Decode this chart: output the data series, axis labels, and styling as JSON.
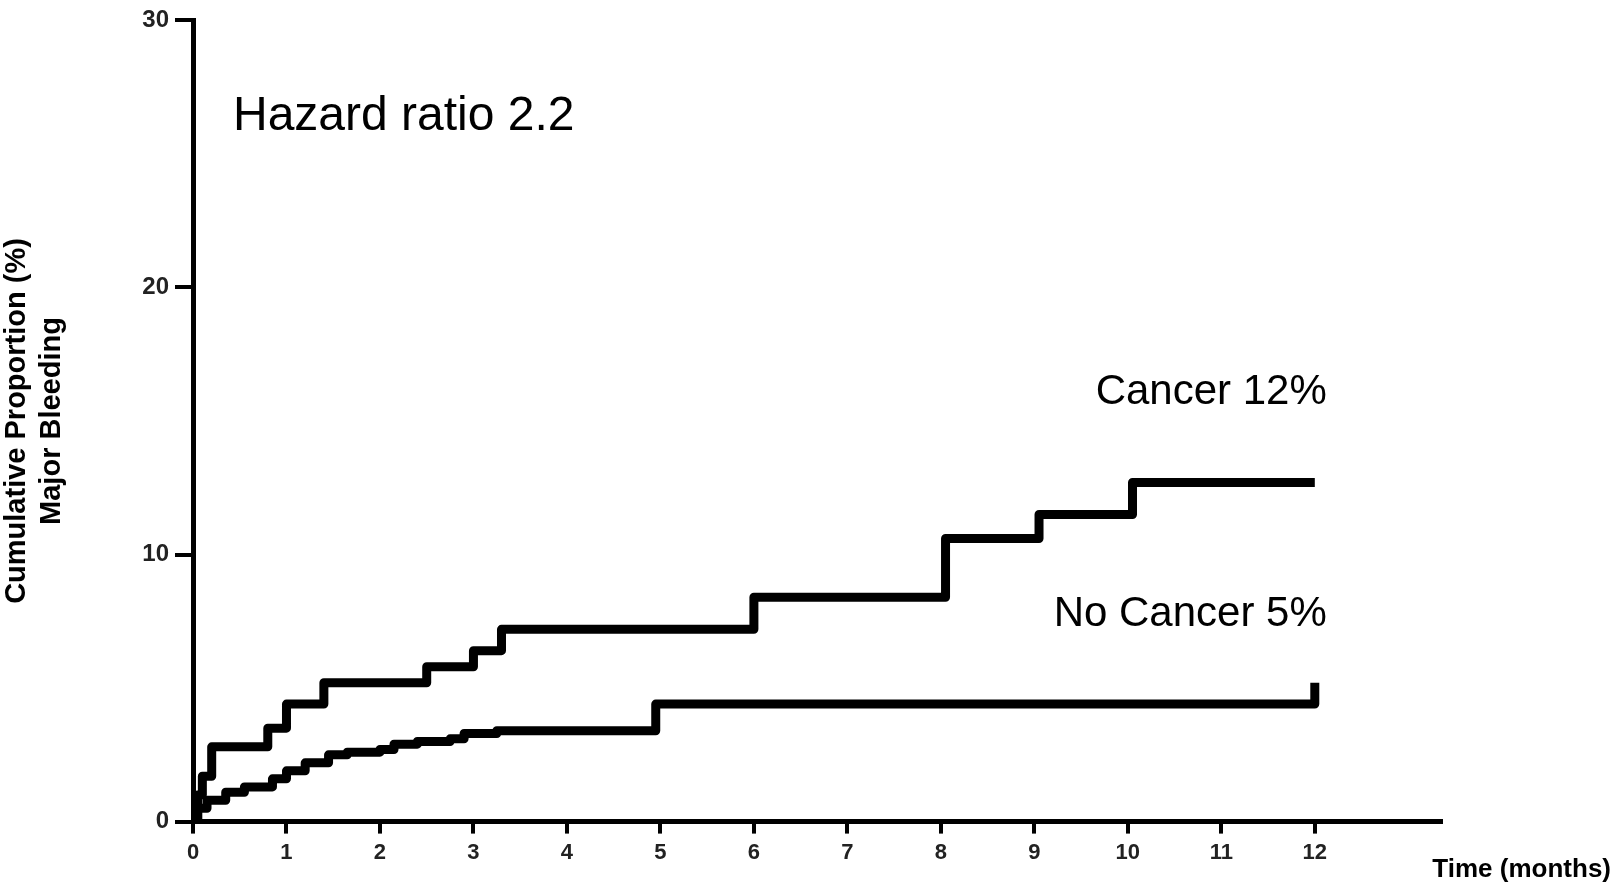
{
  "chart_data": {
    "type": "step",
    "xlabel": "Time (months)",
    "ylabel": "Cumulative Proportion (%)\nMajor Bleeding",
    "annotations": [
      "Hazard ratio 2.2"
    ],
    "xlim": [
      0,
      13.35
    ],
    "xticks": [
      0,
      1,
      2,
      3,
      4,
      5,
      6,
      7,
      8,
      9,
      10,
      11,
      12
    ],
    "ylim": [
      0,
      30
    ],
    "yticks": [
      0,
      10,
      20,
      30
    ],
    "grid": false,
    "legend": false,
    "marker": "none",
    "line_style": "solid",
    "series": [
      {
        "name": "Cancer 12%",
        "color": "#000000",
        "x": [
          0,
          0.05,
          0.1,
          0.2,
          0.8,
          1.0,
          1.4,
          2.5,
          3.0,
          3.3,
          6.0,
          8.05,
          9.05,
          10.05,
          12
        ],
        "values": [
          0,
          1.0,
          1.7,
          2.8,
          3.5,
          4.4,
          5.2,
          5.8,
          6.4,
          7.2,
          8.4,
          10.6,
          11.5,
          12.7,
          12.7
        ]
      },
      {
        "name": "No Cancer 5%",
        "color": "#000000",
        "x": [
          0,
          0.05,
          0.15,
          0.35,
          0.55,
          0.85,
          1.0,
          1.2,
          1.45,
          1.65,
          2.0,
          2.15,
          2.4,
          2.75,
          2.9,
          3.25,
          4.95,
          12
        ],
        "values": [
          0,
          0.5,
          0.8,
          1.1,
          1.3,
          1.6,
          1.9,
          2.2,
          2.5,
          2.6,
          2.7,
          2.9,
          3.0,
          3.1,
          3.3,
          3.4,
          4.4,
          5.2
        ]
      }
    ]
  }
}
